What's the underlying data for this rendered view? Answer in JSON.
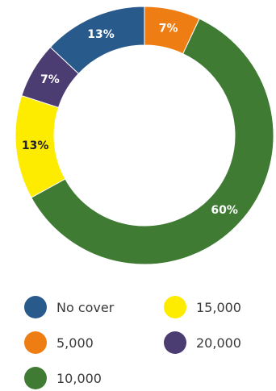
{
  "chart_data": {
    "type": "pie",
    "variant": "donut",
    "categories": [
      "No cover",
      "5,000",
      "10,000",
      "15,000",
      "20,000"
    ],
    "values": [
      13,
      7,
      60,
      13,
      7
    ],
    "value_labels": [
      "13%",
      "7%",
      "60%",
      "13%",
      "7%"
    ],
    "colors": [
      "#285a8c",
      "#ee7d14",
      "#3f7b32",
      "#fdeb00",
      "#4b3c72"
    ],
    "label_colors": [
      "#ffffff",
      "#ffffff",
      "#ffffff",
      "#222222",
      "#ffffff"
    ],
    "legend_position": "bottom",
    "legend": [
      {
        "label": "No cover",
        "color": "#285a8c"
      },
      {
        "label": "5,000",
        "color": "#ee7d14"
      },
      {
        "label": "10,000",
        "color": "#3f7b32"
      },
      {
        "label": "15,000",
        "color": "#fdeb00"
      },
      {
        "label": "20,000",
        "color": "#4b3c72"
      }
    ]
  }
}
